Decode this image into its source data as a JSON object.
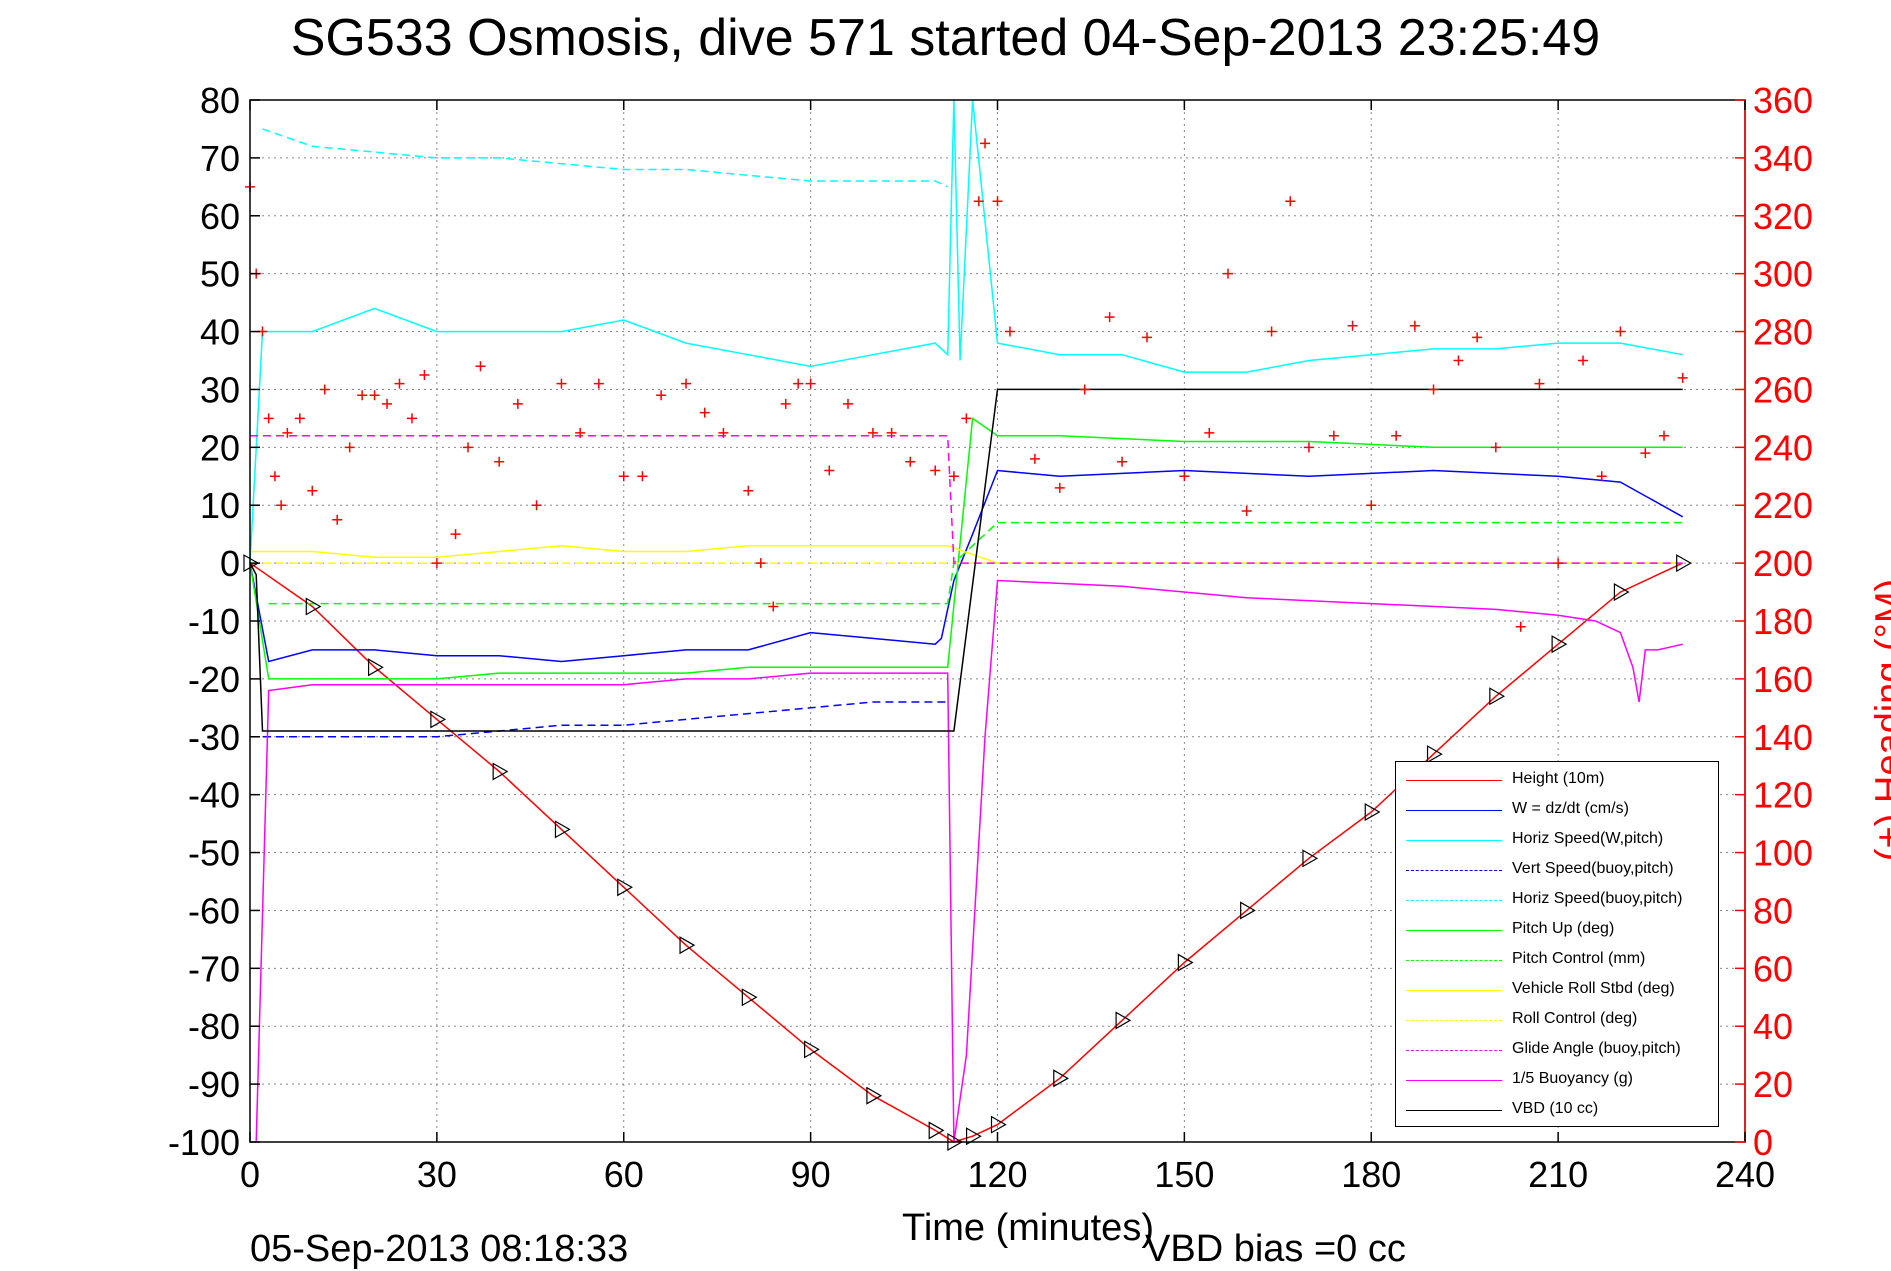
{
  "chart_data": {
    "type": "line",
    "title": "SG533 Osmosis, dive 571 started 04-Sep-2013 23:25:49",
    "xlabel": "Time (minutes)",
    "ylabel_right": "(+) Heading (°M)",
    "timestamp": "05-Sep-2013 08:18:33",
    "annotation": "VBD bias =0 cc",
    "xlim": [
      0,
      240
    ],
    "ylim": [
      -100,
      80
    ],
    "ylim_right": [
      0,
      360
    ],
    "xticks": [
      "0",
      "30",
      "60",
      "90",
      "120",
      "150",
      "180",
      "210",
      "240"
    ],
    "yticks": [
      "80",
      "70",
      "60",
      "50",
      "40",
      "30",
      "20",
      "10",
      "0",
      "-10",
      "-20",
      "-30",
      "-40",
      "-50",
      "-60",
      "-70",
      "-80",
      "-90",
      "-100"
    ],
    "yticks_right": [
      "360",
      "340",
      "320",
      "300",
      "280",
      "260",
      "240",
      "220",
      "200",
      "180",
      "160",
      "140",
      "120",
      "100",
      "80",
      "60",
      "40",
      "20",
      "0"
    ],
    "grid": true,
    "legend_position": "bottom-right",
    "series": [
      {
        "name": "Height (10m)",
        "color": "#ff0000",
        "dash": "solid",
        "x": [
          0,
          10,
          20,
          30,
          40,
          50,
          60,
          70,
          80,
          90,
          100,
          110,
          113,
          116,
          120,
          130,
          140,
          150,
          160,
          170,
          180,
          190,
          200,
          210,
          220,
          230
        ],
        "y": [
          0,
          -7.5,
          -18,
          -27,
          -36,
          -46,
          -56,
          -66,
          -75,
          -84,
          -92,
          -98,
          -100,
          -99,
          -97,
          -89,
          -79,
          -69,
          -60,
          -51,
          -43,
          -33,
          -23,
          -14,
          -5,
          0
        ]
      },
      {
        "name": "W = dz/dt (cm/s)",
        "color": "#0000ff",
        "dash": "solid",
        "x": [
          0,
          3,
          10,
          20,
          30,
          40,
          50,
          60,
          70,
          80,
          90,
          100,
          110,
          111,
          113,
          116,
          120,
          130,
          150,
          170,
          190,
          210,
          220,
          230
        ],
        "y": [
          0,
          -17,
          -15,
          -15,
          -16,
          -16,
          -17,
          -16,
          -15,
          -15,
          -12,
          -13,
          -14,
          -13,
          -3,
          5,
          16,
          15,
          16,
          15,
          16,
          15,
          14,
          8
        ]
      },
      {
        "name": "Horiz Speed(W,pitch)",
        "color": "#00ffff",
        "dash": "solid",
        "x": [
          0,
          2,
          10,
          20,
          30,
          40,
          50,
          60,
          70,
          80,
          90,
          100,
          110,
          112,
          113,
          114,
          116,
          120,
          130,
          140,
          150,
          160,
          170,
          180,
          190,
          200,
          210,
          220,
          230
        ],
        "y": [
          0,
          40,
          40,
          44,
          40,
          40,
          40,
          42,
          38,
          36,
          34,
          36,
          38,
          36,
          80,
          35,
          80,
          38,
          36,
          36,
          33,
          33,
          35,
          36,
          37,
          37,
          38,
          38,
          36
        ]
      },
      {
        "name": "Vert Speed(buoy,pitch)",
        "color": "#0000ff",
        "dash": "dashed",
        "x": [
          0,
          3,
          10,
          20,
          30,
          40,
          50,
          60,
          70,
          80,
          90,
          100,
          110,
          112
        ],
        "y": [
          -30,
          -30,
          -30,
          -30,
          -30,
          -29,
          -28,
          -28,
          -27,
          -26,
          -25,
          -24,
          -24,
          -24
        ]
      },
      {
        "name": "Horiz Speed(buoy,pitch)",
        "color": "#00ffff",
        "dash": "dashed",
        "x": [
          2,
          10,
          20,
          30,
          40,
          50,
          60,
          70,
          80,
          90,
          100,
          110,
          112
        ],
        "y": [
          75,
          72,
          71,
          70,
          70,
          69,
          68,
          68,
          67,
          66,
          66,
          66,
          65
        ]
      },
      {
        "name": "Pitch Up (deg)",
        "color": "#00ff00",
        "dash": "solid",
        "x": [
          0,
          3,
          10,
          20,
          30,
          40,
          50,
          60,
          70,
          80,
          90,
          100,
          110,
          112,
          116,
          120,
          130,
          150,
          170,
          190,
          210,
          230
        ],
        "y": [
          0,
          -20,
          -20,
          -20,
          -20,
          -19,
          -19,
          -19,
          -19,
          -18,
          -18,
          -18,
          -18,
          -18,
          25,
          22,
          22,
          21,
          21,
          20,
          20,
          20
        ]
      },
      {
        "name": "Pitch Control (mm)",
        "color": "#00ff00",
        "dash": "dashed",
        "x": [
          3,
          112,
          113,
          120,
          230
        ],
        "y": [
          -7,
          -7,
          0,
          7,
          7
        ]
      },
      {
        "name": "Vehicle Roll Stbd (deg)",
        "color": "#ffff00",
        "dash": "solid",
        "x": [
          0,
          10,
          20,
          30,
          40,
          50,
          60,
          70,
          80,
          90,
          100,
          110,
          112,
          120,
          130,
          150,
          170,
          190,
          210,
          230
        ],
        "y": [
          2,
          2,
          1,
          1,
          2,
          3,
          2,
          2,
          3,
          3,
          3,
          3,
          3,
          0,
          0,
          0,
          0,
          0,
          0,
          0
        ]
      },
      {
        "name": "Roll Control (deg)",
        "color": "#ffff00",
        "dash": "dashed",
        "x": [
          0,
          230
        ],
        "y": [
          0,
          0
        ]
      },
      {
        "name": "Glide Angle (buoy,pitch)",
        "color": "#ff00ff",
        "dash": "dashed",
        "x": [
          0,
          3,
          10,
          20,
          30,
          40,
          50,
          60,
          70,
          80,
          90,
          100,
          110,
          112,
          113,
          230
        ],
        "y": [
          22,
          22,
          22,
          22,
          22,
          22,
          22,
          22,
          22,
          22,
          22,
          22,
          22,
          22,
          0,
          0
        ]
      },
      {
        "name": "1/5 Buoyancy (g)",
        "color": "#ff00ff",
        "dash": "solid",
        "x": [
          1,
          3,
          10,
          20,
          30,
          40,
          50,
          60,
          70,
          80,
          90,
          100,
          110,
          112,
          113,
          115,
          118,
          120,
          140,
          160,
          180,
          200,
          210,
          216,
          220,
          222,
          223,
          224,
          226,
          230
        ],
        "y": [
          -100,
          -22,
          -21,
          -21,
          -21,
          -21,
          -21,
          -21,
          -20,
          -20,
          -19,
          -19,
          -19,
          -19,
          -100,
          -85,
          -30,
          -3,
          -4,
          -6,
          -7,
          -8,
          -9,
          -10,
          -12,
          -18,
          -24,
          -15,
          -15,
          -14
        ]
      },
      {
        "name": "VBD (10 cc)",
        "color": "#000000",
        "dash": "solid",
        "x": [
          0,
          1,
          2,
          3,
          20,
          40,
          60,
          80,
          100,
          112,
          113,
          120,
          130,
          150,
          170,
          190,
          210,
          230
        ],
        "y": [
          0,
          -2,
          -29,
          -29,
          -29,
          -29,
          -29,
          -29,
          -29,
          -29,
          -29,
          30,
          30,
          30,
          30,
          30,
          30,
          30
        ]
      },
      {
        "name": "Heading",
        "color": "#ff0000",
        "marker": "+",
        "axis": "right",
        "x": [
          0,
          1,
          2,
          3,
          4,
          5,
          6,
          8,
          10,
          12,
          14,
          16,
          18,
          20,
          22,
          24,
          26,
          28,
          30,
          33,
          35,
          37,
          40,
          43,
          46,
          50,
          53,
          56,
          60,
          63,
          66,
          70,
          73,
          76,
          80,
          82,
          84,
          86,
          88,
          90,
          93,
          96,
          100,
          103,
          106,
          110,
          113,
          115,
          117,
          118,
          120,
          122,
          126,
          130,
          134,
          138,
          140,
          144,
          150,
          154,
          157,
          160,
          164,
          167,
          170,
          174,
          177,
          180,
          184,
          187,
          190,
          194,
          197,
          200,
          204,
          207,
          210,
          214,
          217,
          220,
          224,
          227,
          230
        ],
        "y": [
          330,
          300,
          280,
          250,
          230,
          220,
          245,
          250,
          225,
          260,
          215,
          240,
          258,
          258,
          255,
          262,
          250,
          265,
          200,
          210,
          240,
          268,
          235,
          255,
          220,
          262,
          245,
          262,
          230,
          230,
          258,
          262,
          252,
          245,
          225,
          200,
          185,
          255,
          262,
          262,
          232,
          255,
          245,
          245,
          235,
          232,
          230,
          250,
          325,
          345,
          325,
          280,
          236,
          226,
          260,
          285,
          235,
          278,
          230,
          245,
          300,
          218,
          280,
          325,
          240,
          244,
          282,
          220,
          244,
          282,
          260,
          270,
          278,
          240,
          178,
          262,
          200,
          270,
          230,
          280,
          238,
          244,
          264
        ]
      }
    ]
  }
}
